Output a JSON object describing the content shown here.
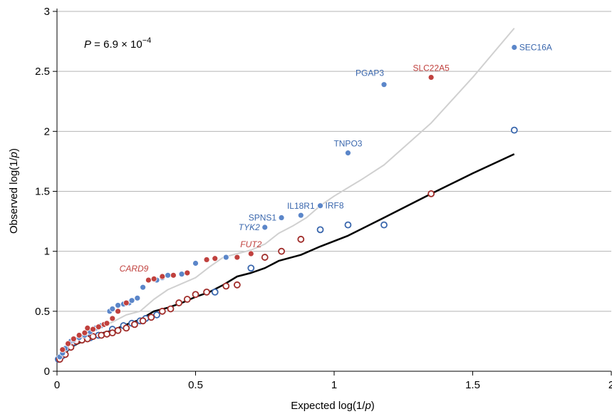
{
  "chart_data": {
    "type": "scatter",
    "xlabel_pre": "Expected log(1/",
    "xlabel_var": "p",
    "xlabel_post": ")",
    "ylabel_pre": "Observed log(1/",
    "ylabel_var": "p",
    "ylabel_post": ")",
    "xlim": [
      0,
      2
    ],
    "ylim": [
      0,
      3
    ],
    "xticks": [
      0,
      0.5,
      1,
      1.5,
      2
    ],
    "xtick_labels": [
      "0",
      "0.5",
      "1",
      "1.5",
      "2"
    ],
    "yticks": [
      0,
      0.5,
      1,
      1.5,
      2,
      2.5,
      3
    ],
    "ytick_labels": [
      "0",
      "0.5",
      "1",
      "1.5",
      "2",
      "2.5",
      "3"
    ],
    "grid": "horizontal",
    "annotation": {
      "p_symbol": "P",
      "eq": " = 6.9 × 10",
      "exp": "−4"
    },
    "colors": {
      "blue": "#5b86c9",
      "blue_edge": "#3a67ad",
      "red": "#c0413e",
      "red_edge": "#a02d2a",
      "grey_line": "#d0d0d0",
      "black_line": "#000000",
      "grid": "#b5b5b5"
    },
    "series": [
      {
        "kind": "line",
        "color": "grey",
        "points": [
          [
            0,
            0.08
          ],
          [
            0.05,
            0.22
          ],
          [
            0.1,
            0.3
          ],
          [
            0.15,
            0.36
          ],
          [
            0.2,
            0.41
          ],
          [
            0.25,
            0.47
          ],
          [
            0.3,
            0.5
          ],
          [
            0.35,
            0.6
          ],
          [
            0.4,
            0.68
          ],
          [
            0.45,
            0.73
          ],
          [
            0.5,
            0.78
          ],
          [
            0.55,
            0.87
          ],
          [
            0.6,
            0.95
          ],
          [
            0.65,
            0.98
          ],
          [
            0.7,
            1.01
          ],
          [
            0.75,
            1.06
          ],
          [
            0.8,
            1.15
          ],
          [
            0.85,
            1.21
          ],
          [
            0.9,
            1.28
          ],
          [
            0.95,
            1.38
          ],
          [
            1.0,
            1.46
          ],
          [
            1.05,
            1.53
          ],
          [
            1.1,
            1.6
          ],
          [
            1.18,
            1.72
          ],
          [
            1.35,
            2.07
          ],
          [
            1.5,
            2.45
          ],
          [
            1.65,
            2.86
          ]
        ]
      },
      {
        "kind": "line",
        "color": "black",
        "points": [
          [
            0,
            0.08
          ],
          [
            0.05,
            0.2
          ],
          [
            0.1,
            0.26
          ],
          [
            0.15,
            0.31
          ],
          [
            0.2,
            0.34
          ],
          [
            0.25,
            0.39
          ],
          [
            0.3,
            0.43
          ],
          [
            0.35,
            0.5
          ],
          [
            0.4,
            0.53
          ],
          [
            0.45,
            0.57
          ],
          [
            0.5,
            0.62
          ],
          [
            0.55,
            0.66
          ],
          [
            0.6,
            0.72
          ],
          [
            0.65,
            0.79
          ],
          [
            0.7,
            0.82
          ],
          [
            0.75,
            0.86
          ],
          [
            0.8,
            0.92
          ],
          [
            0.88,
            0.97
          ],
          [
            0.95,
            1.04
          ],
          [
            1.05,
            1.13
          ],
          [
            1.18,
            1.28
          ],
          [
            1.35,
            1.48
          ],
          [
            1.5,
            1.65
          ],
          [
            1.65,
            1.81
          ]
        ]
      },
      {
        "kind": "points",
        "color": "blue",
        "filled": true,
        "points": [
          [
            0.01,
            0.12
          ],
          [
            0.02,
            0.15
          ],
          [
            0.03,
            0.19
          ],
          [
            0.04,
            0.23
          ],
          [
            0.05,
            0.25
          ],
          [
            0.06,
            0.26
          ],
          [
            0.08,
            0.28
          ],
          [
            0.1,
            0.3
          ],
          [
            0.12,
            0.33
          ],
          [
            0.14,
            0.36
          ],
          [
            0.16,
            0.38
          ],
          [
            0.18,
            0.4
          ],
          [
            0.19,
            0.5
          ],
          [
            0.2,
            0.52
          ],
          [
            0.22,
            0.55
          ],
          [
            0.24,
            0.56
          ],
          [
            0.26,
            0.57
          ],
          [
            0.27,
            0.59
          ],
          [
            0.29,
            0.61
          ],
          [
            0.31,
            0.7
          ],
          [
            0.36,
            0.76
          ],
          [
            0.38,
            0.78
          ],
          [
            0.4,
            0.8
          ],
          [
            0.45,
            0.81
          ],
          [
            0.5,
            0.9
          ],
          [
            0.61,
            0.95
          ],
          [
            0.75,
            1.2
          ],
          [
            0.81,
            1.28
          ],
          [
            0.88,
            1.3
          ],
          [
            0.95,
            1.38
          ],
          [
            1.05,
            1.82
          ],
          [
            1.18,
            2.39
          ],
          [
            1.65,
            2.7
          ]
        ]
      },
      {
        "kind": "points",
        "color": "red",
        "filled": true,
        "points": [
          [
            0.02,
            0.18
          ],
          [
            0.04,
            0.23
          ],
          [
            0.06,
            0.27
          ],
          [
            0.08,
            0.3
          ],
          [
            0.1,
            0.32
          ],
          [
            0.11,
            0.36
          ],
          [
            0.13,
            0.35
          ],
          [
            0.15,
            0.37
          ],
          [
            0.17,
            0.39
          ],
          [
            0.18,
            0.4
          ],
          [
            0.2,
            0.44
          ],
          [
            0.22,
            0.5
          ],
          [
            0.25,
            0.57
          ],
          [
            0.33,
            0.76
          ],
          [
            0.35,
            0.77
          ],
          [
            0.38,
            0.79
          ],
          [
            0.42,
            0.8
          ],
          [
            0.47,
            0.82
          ],
          [
            0.54,
            0.93
          ],
          [
            0.57,
            0.94
          ],
          [
            0.65,
            0.95
          ],
          [
            0.7,
            0.98
          ],
          [
            1.35,
            2.45
          ]
        ]
      },
      {
        "kind": "points",
        "color": "blue",
        "filled": false,
        "points": [
          [
            0.005,
            0.1
          ],
          [
            0.02,
            0.13
          ],
          [
            0.04,
            0.2
          ],
          [
            0.06,
            0.24
          ],
          [
            0.09,
            0.27
          ],
          [
            0.12,
            0.28
          ],
          [
            0.15,
            0.3
          ],
          [
            0.2,
            0.35
          ],
          [
            0.24,
            0.38
          ],
          [
            0.27,
            0.4
          ],
          [
            0.3,
            0.42
          ],
          [
            0.32,
            0.44
          ],
          [
            0.36,
            0.47
          ],
          [
            0.57,
            0.66
          ],
          [
            0.7,
            0.86
          ],
          [
            0.95,
            1.18
          ],
          [
            1.05,
            1.22
          ],
          [
            1.18,
            1.22
          ],
          [
            1.65,
            2.01
          ]
        ]
      },
      {
        "kind": "points",
        "color": "red",
        "filled": false,
        "points": [
          [
            0.01,
            0.1
          ],
          [
            0.03,
            0.14
          ],
          [
            0.05,
            0.2
          ],
          [
            0.07,
            0.25
          ],
          [
            0.09,
            0.26
          ],
          [
            0.11,
            0.27
          ],
          [
            0.13,
            0.29
          ],
          [
            0.16,
            0.3
          ],
          [
            0.18,
            0.31
          ],
          [
            0.2,
            0.32
          ],
          [
            0.22,
            0.34
          ],
          [
            0.25,
            0.36
          ],
          [
            0.28,
            0.39
          ],
          [
            0.31,
            0.42
          ],
          [
            0.34,
            0.45
          ],
          [
            0.38,
            0.5
          ],
          [
            0.41,
            0.52
          ],
          [
            0.44,
            0.57
          ],
          [
            0.47,
            0.6
          ],
          [
            0.5,
            0.64
          ],
          [
            0.54,
            0.66
          ],
          [
            0.61,
            0.71
          ],
          [
            0.65,
            0.72
          ],
          [
            0.75,
            0.95
          ],
          [
            0.81,
            1.0
          ],
          [
            0.88,
            1.1
          ],
          [
            1.35,
            1.48
          ]
        ]
      }
    ],
    "labels": [
      {
        "text": "SEC16A",
        "x": 1.65,
        "y": 2.7,
        "color": "blue",
        "italic": false,
        "anchor": "start"
      },
      {
        "text": "SLC22A5",
        "x": 1.35,
        "y": 2.45,
        "color": "red",
        "italic": false,
        "anchor": "middle-above"
      },
      {
        "text": "PGAP3",
        "x": 1.18,
        "y": 2.39,
        "color": "blue",
        "italic": false,
        "anchor": "end-above"
      },
      {
        "text": "TNPO3",
        "x": 1.05,
        "y": 1.82,
        "color": "blue",
        "italic": false,
        "anchor": "middle-above"
      },
      {
        "text": "IL18R1",
        "x": 0.88,
        "y": 1.3,
        "color": "blue",
        "italic": false,
        "anchor": "middle-above"
      },
      {
        "text": "IRF8",
        "x": 0.95,
        "y": 1.38,
        "color": "blue",
        "italic": false,
        "anchor": "start"
      },
      {
        "text": "SPNS1",
        "x": 0.81,
        "y": 1.28,
        "color": "blue",
        "italic": false,
        "anchor": "end"
      },
      {
        "text": "TYK2",
        "x": 0.75,
        "y": 1.2,
        "color": "blue",
        "italic": true,
        "anchor": "end"
      },
      {
        "text": "FUT2",
        "x": 0.7,
        "y": 0.98,
        "color": "red",
        "italic": true,
        "anchor": "middle-above"
      },
      {
        "text": "CARD9",
        "x": 0.33,
        "y": 0.76,
        "color": "red",
        "italic": true,
        "anchor": "end-above"
      }
    ]
  }
}
